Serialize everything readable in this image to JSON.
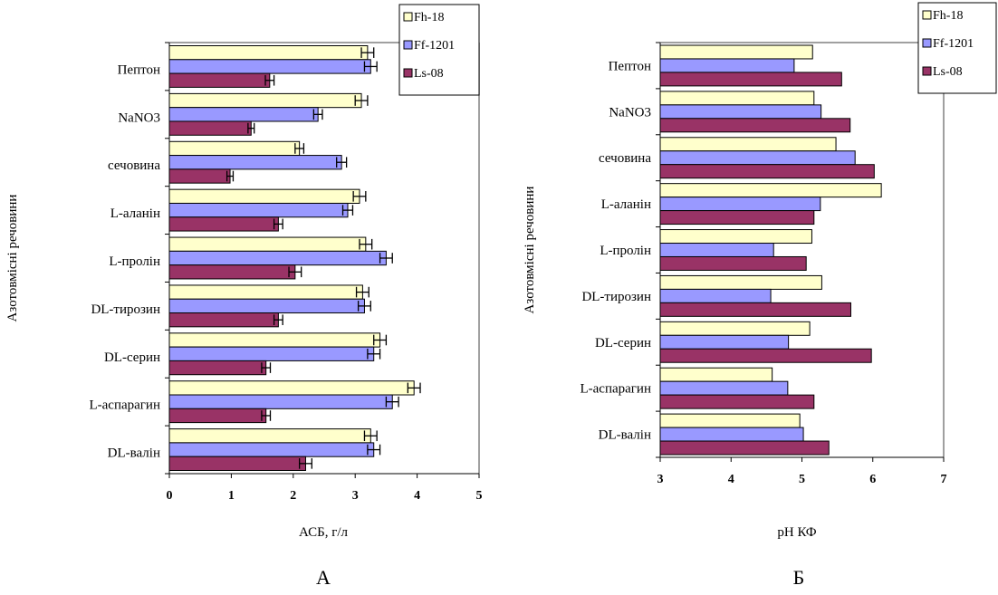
{
  "series_colors": {
    "Fh-18": "#FFFFCC",
    "Ff-1201": "#9999FF",
    "Ls-08": "#993366"
  },
  "chart_data": [
    {
      "type": "bar",
      "orientation": "horizontal",
      "panel_label": "А",
      "xlabel": "АСБ, г/л",
      "ylabel": "Азотовмісні речовини",
      "xlim": [
        0,
        5
      ],
      "xticks": [
        0,
        1,
        2,
        3,
        4,
        5
      ],
      "error_bars": true,
      "legend_position": "top-right",
      "categories": [
        "Пептон",
        "NaNO3",
        "сечовина",
        "L-аланін",
        "L-пролін",
        "DL-тирозин",
        "DL-серин",
        "L-аспарагин",
        "DL-валін"
      ],
      "series": [
        {
          "name": "Fh-18",
          "values": [
            3.2,
            3.1,
            2.1,
            3.07,
            3.17,
            3.12,
            3.4,
            3.95,
            3.25
          ],
          "errors": [
            0.1,
            0.1,
            0.07,
            0.1,
            0.1,
            0.1,
            0.1,
            0.1,
            0.1
          ]
        },
        {
          "name": "Ff-1201",
          "values": [
            3.25,
            2.4,
            2.78,
            2.88,
            3.5,
            3.15,
            3.3,
            3.6,
            3.3
          ],
          "errors": [
            0.1,
            0.07,
            0.08,
            0.08,
            0.1,
            0.1,
            0.1,
            0.1,
            0.1
          ]
        },
        {
          "name": "Ls-08",
          "values": [
            1.62,
            1.32,
            0.98,
            1.76,
            2.03,
            1.76,
            1.56,
            1.56,
            2.2
          ],
          "errors": [
            0.07,
            0.05,
            0.05,
            0.07,
            0.1,
            0.07,
            0.07,
            0.07,
            0.1
          ]
        }
      ]
    },
    {
      "type": "bar",
      "orientation": "horizontal",
      "panel_label": "Б",
      "xlabel": "рН КФ",
      "ylabel": "Азотовмісні речовини",
      "xlim": [
        3,
        7
      ],
      "xticks": [
        3,
        4,
        5,
        6,
        7
      ],
      "error_bars": false,
      "legend_position": "top-right",
      "categories": [
        "Пептон",
        "NaNO3",
        "сечовина",
        "L-аланін",
        "L-пролін",
        "DL-тирозин",
        "DL-серин",
        "L-аспарагин",
        "DL-валін"
      ],
      "series": [
        {
          "name": "Fh-18",
          "values": [
            5.15,
            5.17,
            5.48,
            6.12,
            5.14,
            5.28,
            5.11,
            4.58,
            4.97
          ]
        },
        {
          "name": "Ff-1201",
          "values": [
            4.89,
            5.27,
            5.75,
            5.26,
            4.6,
            4.56,
            4.81,
            4.8,
            5.02
          ]
        },
        {
          "name": "Ls-08",
          "values": [
            5.56,
            5.68,
            6.02,
            5.17,
            5.06,
            5.69,
            5.98,
            5.17,
            5.38
          ]
        }
      ]
    }
  ]
}
